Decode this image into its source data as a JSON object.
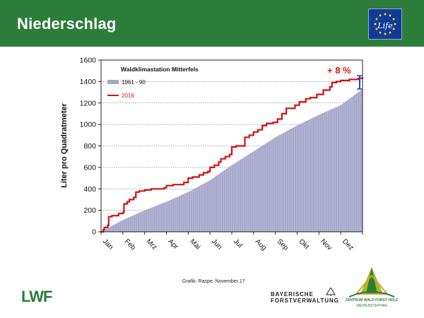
{
  "slide": {
    "title": "Niederschlag",
    "caption": "Grafik: Raspe, November 17"
  },
  "logos": {
    "eu_life": "Life",
    "lwf": "LWF",
    "bayern_line1": "BAYERISCHE",
    "bayern_line2": "FORSTVERWALTUNG",
    "zwfh_name": "ZENTRUM WALD FORST HOLZ",
    "zwfh_sub": "WEIHENSTEPHAN"
  },
  "colors": {
    "header_green": "#2c7d3a",
    "series_2016": "#cc1414",
    "series_1961_90": "#a7a7cc",
    "annotation_red": "#e01010",
    "bracket_blue": "#2a3dd6"
  },
  "chart_data": {
    "type": "area",
    "title": "Waldklimastation Mitterfels",
    "ylabel": "Liter pro Quadratmeter",
    "xlabel": "",
    "ylim": [
      0,
      1600
    ],
    "yticks": [
      0,
      200,
      400,
      600,
      800,
      1000,
      1200,
      1400,
      1600
    ],
    "months": [
      "Jan",
      "Feb",
      "Mrz",
      "Apr",
      "Mai",
      "Jun",
      "Jul",
      "Aug",
      "Sep",
      "Okt",
      "Nov",
      "Dez"
    ],
    "annotation": "+ 8 %",
    "grid": "horizontal dotted",
    "legend_position": "top-left",
    "series": [
      {
        "name": "1961 - 90",
        "kind": "area",
        "x": [
          0,
          1,
          2,
          3,
          4,
          5,
          6,
          7,
          8,
          9,
          10,
          11,
          12
        ],
        "values": [
          0,
          110,
          200,
          280,
          370,
          480,
          620,
          750,
          880,
          990,
          1090,
          1180,
          1330
        ]
      },
      {
        "name": "2016",
        "kind": "step-line",
        "x": [
          0,
          0.1,
          0.15,
          0.3,
          0.35,
          0.5,
          0.7,
          0.8,
          1.0,
          1.05,
          1.2,
          1.3,
          1.5,
          1.6,
          1.75,
          2.0,
          2.3,
          2.5,
          2.9,
          3.0,
          3.3,
          3.6,
          3.8,
          4.0,
          4.2,
          4.5,
          4.7,
          4.9,
          5.0,
          5.2,
          5.4,
          5.5,
          5.7,
          5.9,
          6.0,
          6.2,
          6.4,
          6.6,
          6.8,
          7.0,
          7.2,
          7.4,
          7.6,
          7.9,
          8.1,
          8.3,
          8.5,
          8.9,
          9.1,
          9.4,
          9.6,
          9.9,
          10.2,
          10.5,
          10.6,
          10.8,
          11.0,
          11.4,
          11.8,
          12.0
        ],
        "values": [
          0,
          20,
          40,
          60,
          140,
          150,
          150,
          170,
          180,
          260,
          280,
          300,
          320,
          370,
          380,
          390,
          400,
          400,
          410,
          430,
          440,
          440,
          460,
          500,
          510,
          530,
          550,
          560,
          600,
          620,
          650,
          680,
          700,
          720,
          790,
          800,
          800,
          880,
          900,
          930,
          950,
          990,
          1010,
          1020,
          1050,
          1100,
          1150,
          1180,
          1210,
          1240,
          1250,
          1280,
          1320,
          1350,
          1390,
          1400,
          1410,
          1420,
          1430,
          1440
        ]
      }
    ]
  }
}
